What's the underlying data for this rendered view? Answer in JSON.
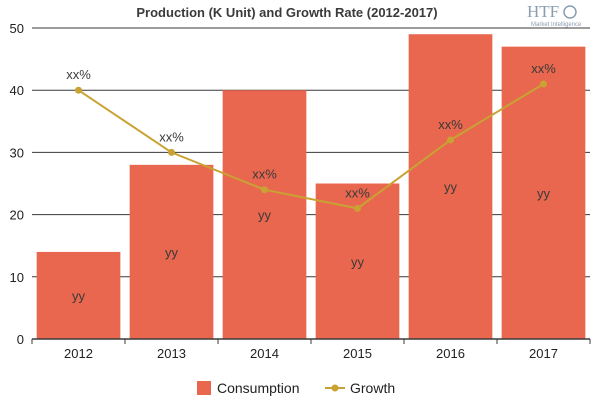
{
  "chart_data": {
    "type": "bar",
    "title": "Production (K Unit) and Growth Rate (2012-2017)",
    "categories": [
      "2012",
      "2013",
      "2014",
      "2015",
      "2016",
      "2017"
    ],
    "ylim": [
      0,
      50
    ],
    "yticks": [
      "0",
      "10",
      "20",
      "30",
      "40",
      "50"
    ],
    "grid": true,
    "legend_position": "bottom",
    "series": [
      {
        "name": "Consumption",
        "type": "bar",
        "color": "#e8674e",
        "values": [
          14,
          28,
          40,
          25,
          49,
          47
        ],
        "labels": [
          "yy",
          "yy",
          "yy",
          "yy",
          "yy",
          "yy"
        ]
      },
      {
        "name": "Growth",
        "type": "line",
        "color": "#c9a233",
        "values": [
          40,
          30,
          24,
          21,
          32,
          41
        ],
        "labels": [
          "xx%",
          "xx%",
          "xx%",
          "xx%",
          "xx%",
          "xx%"
        ]
      }
    ]
  },
  "logo": {
    "text": "HTF",
    "subtext": "Market Intelligence"
  }
}
